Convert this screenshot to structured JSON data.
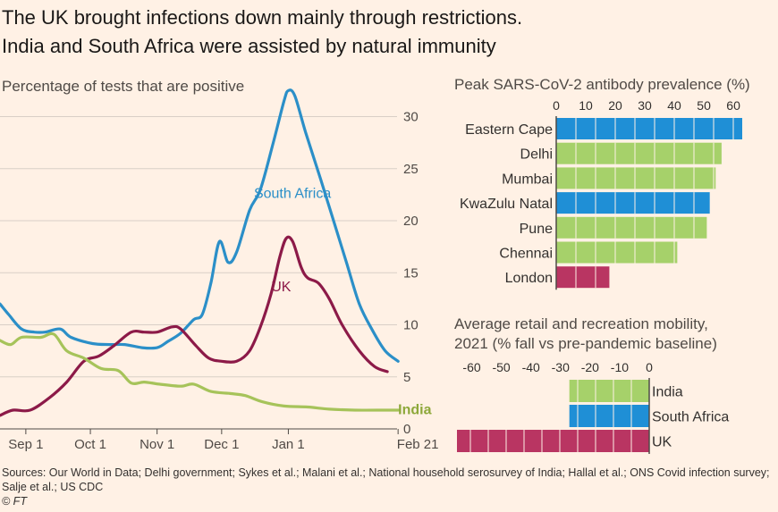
{
  "title_line1": "The UK brought infections down mainly through restrictions.",
  "title_line2": "India and South Africa were assisted by natural immunity",
  "sources": "Sources: Our World in Data; Delhi government; Sykes et al.; Malani et al.; National household serosurvey of India; Hallal et al.; ONS Covid infection survey; Salje et al.; US CDC",
  "credit": "© FT",
  "colors": {
    "south_africa": "#2b8fc8",
    "uk": "#8c1a48",
    "india": "#a6c35a",
    "india_bar": "#a6d16a",
    "sa_bar": "#1f8fd6",
    "uk_bar": "#b93562",
    "grid": "#d9cfc6",
    "axis": "#4f4a46"
  },
  "chart_data": [
    {
      "type": "line",
      "subtitle": "Percentage of tests that are positive",
      "x_tick_labels": [
        "Sep 1",
        "Oct 1",
        "Nov 1",
        "Dec 1",
        "Jan 1",
        "Feb 21"
      ],
      "y_ticks": [
        0,
        5,
        10,
        15,
        20,
        25,
        30
      ],
      "ylim": [
        0,
        32
      ],
      "grid": true,
      "series": [
        {
          "name": "South Africa",
          "label_color": "#2b8fc8",
          "points": [
            [
              "Aug 20",
              12
            ],
            [
              "Aug 24",
              11
            ],
            [
              "Aug 30",
              9.6
            ],
            [
              "Sep 5",
              9.3
            ],
            [
              "Sep 10",
              9.3
            ],
            [
              "Sep 17",
              9.6
            ],
            [
              "Sep 22",
              8.8
            ],
            [
              "Oct 2",
              8.2
            ],
            [
              "Oct 10",
              8.1
            ],
            [
              "Oct 17",
              8.1
            ],
            [
              "Oct 25",
              7.8
            ],
            [
              "Nov 1",
              7.8
            ],
            [
              "Nov 6",
              8.4
            ],
            [
              "Nov 12",
              9.2
            ],
            [
              "Nov 18",
              10.5
            ],
            [
              "Nov 22",
              11
            ],
            [
              "Nov 26",
              14
            ],
            [
              "Nov 30",
              18
            ],
            [
              "Dec 4",
              16
            ],
            [
              "Dec 8",
              17
            ],
            [
              "Dec 14",
              21
            ],
            [
              "Dec 19",
              23
            ],
            [
              "Dec 25",
              27.5
            ],
            [
              "Dec 30",
              31.5
            ],
            [
              "Jan 1",
              32.5
            ],
            [
              "Jan 4",
              32
            ],
            [
              "Jan 9",
              28.5
            ],
            [
              "Jan 16",
              24
            ],
            [
              "Jan 22",
              20
            ],
            [
              "Jan 28",
              16
            ],
            [
              "Feb 3",
              12
            ],
            [
              "Feb 9",
              9.5
            ],
            [
              "Feb 15",
              7.5
            ],
            [
              "Feb 21",
              6.5
            ]
          ]
        },
        {
          "name": "UK",
          "label_color": "#8c1a48",
          "points": [
            [
              "Aug 20",
              1.3
            ],
            [
              "Aug 26",
              1.8
            ],
            [
              "Sep 3",
              1.8
            ],
            [
              "Sep 12",
              3
            ],
            [
              "Sep 20",
              4.5
            ],
            [
              "Sep 28",
              6.5
            ],
            [
              "Oct 5",
              7
            ],
            [
              "Oct 12",
              8
            ],
            [
              "Oct 20",
              9.3
            ],
            [
              "Oct 26",
              9.3
            ],
            [
              "Nov 1",
              9.3
            ],
            [
              "Nov 8",
              9.8
            ],
            [
              "Nov 12",
              9.6
            ],
            [
              "Nov 19",
              8
            ],
            [
              "Nov 25",
              6.8
            ],
            [
              "Dec 1",
              6.5
            ],
            [
              "Dec 8",
              6.5
            ],
            [
              "Dec 14",
              7.5
            ],
            [
              "Dec 19",
              9.8
            ],
            [
              "Dec 24",
              13
            ],
            [
              "Dec 28",
              16.5
            ],
            [
              "Dec 31",
              18.3
            ],
            [
              "Jan 3",
              18
            ],
            [
              "Jan 7",
              15.5
            ],
            [
              "Jan 10",
              14.5
            ],
            [
              "Jan 15",
              14
            ],
            [
              "Jan 20",
              12.5
            ],
            [
              "Jan 26",
              10
            ],
            [
              "Feb 3",
              7.5
            ],
            [
              "Feb 10",
              6
            ],
            [
              "Feb 16",
              5.5
            ]
          ]
        },
        {
          "name": "India",
          "label_color": "#8da83a",
          "points": [
            [
              "Aug 20",
              8.5
            ],
            [
              "Aug 25",
              8.1
            ],
            [
              "Aug 30",
              8.8
            ],
            [
              "Sep 8",
              8.8
            ],
            [
              "Sep 14",
              9.1
            ],
            [
              "Sep 20",
              7.5
            ],
            [
              "Sep 28",
              6.8
            ],
            [
              "Oct 6",
              5.8
            ],
            [
              "Oct 14",
              5.6
            ],
            [
              "Oct 20",
              4.4
            ],
            [
              "Oct 26",
              4.5
            ],
            [
              "Nov 2",
              4.3
            ],
            [
              "Nov 12",
              4.1
            ],
            [
              "Nov 18",
              4.3
            ],
            [
              "Nov 26",
              3.6
            ],
            [
              "Dec 5",
              3.4
            ],
            [
              "Dec 12",
              3.2
            ],
            [
              "Dec 20",
              2.6
            ],
            [
              "Dec 30",
              2.2
            ],
            [
              "Jan 10",
              2.1
            ],
            [
              "Jan 20",
              1.9
            ],
            [
              "Feb 1",
              1.8
            ],
            [
              "Feb 15",
              1.8
            ],
            [
              "Feb 21",
              1.8
            ]
          ]
        }
      ]
    },
    {
      "type": "bar",
      "orientation": "horizontal",
      "title": "Peak SARS-CoV-2 antibody prevalence (%)",
      "x_ticks": [
        0,
        10,
        20,
        30,
        40,
        50,
        60
      ],
      "xlim": [
        0,
        63
      ],
      "categories": [
        "Eastern Cape",
        "Delhi",
        "Mumbai",
        "KwaZulu Natal",
        "Pune",
        "Chennai",
        "London"
      ],
      "values": [
        63,
        56,
        54,
        52,
        51,
        41,
        18
      ],
      "bar_colors": [
        "#1f8fd6",
        "#a6d16a",
        "#a6d16a",
        "#1f8fd6",
        "#a6d16a",
        "#a6d16a",
        "#b93562"
      ]
    },
    {
      "type": "bar",
      "orientation": "horizontal",
      "title_line1": "Average retail and recreation mobility,",
      "title_line2": "2021 (% fall vs pre-pandemic baseline)",
      "x_ticks": [
        -60,
        -50,
        -40,
        -30,
        -20,
        -10,
        0
      ],
      "xlim": [
        -65,
        0
      ],
      "categories": [
        "India",
        "South Africa",
        "UK"
      ],
      "values": [
        -27,
        -27,
        -65
      ],
      "bar_colors": [
        "#a6d16a",
        "#1f8fd6",
        "#b93562"
      ]
    }
  ]
}
